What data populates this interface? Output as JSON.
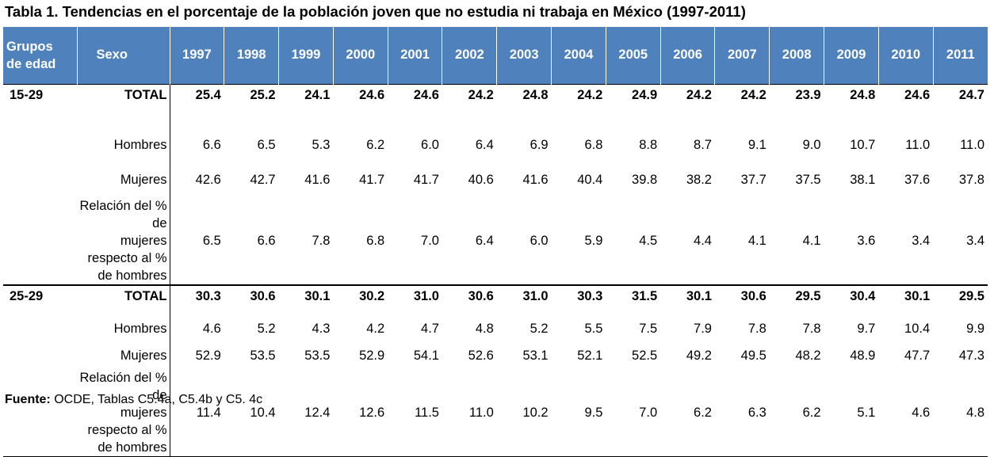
{
  "title": "Tabla 1. Tendencias en el porcentaje de la población joven que no estudia ni trabaja en México (1997-2011)",
  "header": {
    "group_label": "Grupos de edad",
    "group_line1": "Grupos",
    "group_line2": "de edad",
    "sex_label": "Sexo",
    "years": [
      "1997",
      "1998",
      "1999",
      "2000",
      "2001",
      "2002",
      "2003",
      "2004",
      "2005",
      "2006",
      "2007",
      "2008",
      "2009",
      "2010",
      "2011"
    ]
  },
  "groups": [
    {
      "name": "15-29",
      "rows": [
        {
          "label": "TOTAL",
          "values": [
            "25.4",
            "25.2",
            "24.1",
            "24.6",
            "24.6",
            "24.2",
            "24.8",
            "24.2",
            "24.9",
            "24.2",
            "24.2",
            "23.9",
            "24.8",
            "24.6",
            "24.7"
          ]
        },
        {
          "label": "Hombres",
          "values": [
            "6.6",
            "6.5",
            "5.3",
            "6.2",
            "6.0",
            "6.4",
            "6.9",
            "6.8",
            "8.8",
            "8.7",
            "9.1",
            "9.0",
            "10.7",
            "11.0",
            "11.0"
          ]
        },
        {
          "label": "Mujeres",
          "values": [
            "42.6",
            "42.7",
            "41.6",
            "41.7",
            "41.7",
            "40.6",
            "41.6",
            "40.4",
            "39.8",
            "38.2",
            "37.7",
            "37.5",
            "38.1",
            "37.6",
            "37.8"
          ]
        },
        {
          "label": "Relación del % de mujeres respecto al % de hombres",
          "values": [
            "6.5",
            "6.6",
            "7.8",
            "6.8",
            "7.0",
            "6.4",
            "6.0",
            "5.9",
            "4.5",
            "4.4",
            "4.1",
            "4.1",
            "3.6",
            "3.4",
            "3.4"
          ]
        }
      ]
    },
    {
      "name": "25-29",
      "rows": [
        {
          "label": "TOTAL",
          "values": [
            "30.3",
            "30.6",
            "30.1",
            "30.2",
            "31.0",
            "30.6",
            "31.0",
            "30.3",
            "31.5",
            "30.1",
            "30.6",
            "29.5",
            "30.4",
            "30.1",
            "29.5"
          ]
        },
        {
          "label": "Hombres",
          "values": [
            "4.6",
            "5.2",
            "4.3",
            "4.2",
            "4.7",
            "4.8",
            "5.2",
            "5.5",
            "7.5",
            "7.9",
            "7.8",
            "7.8",
            "9.7",
            "10.4",
            "9.9"
          ]
        },
        {
          "label": "Mujeres",
          "values": [
            "52.9",
            "53.5",
            "53.5",
            "52.9",
            "54.1",
            "52.6",
            "53.1",
            "52.1",
            "52.5",
            "49.2",
            "49.5",
            "48.2",
            "48.9",
            "47.7",
            "47.3"
          ]
        },
        {
          "label": "Relación del % de mujeres respecto al % de hombres",
          "values": [
            "11.4",
            "10.4",
            "12.4",
            "12.6",
            "11.5",
            "11.0",
            "10.2",
            "9.5",
            "7.0",
            "6.2",
            "6.3",
            "6.2",
            "5.1",
            "4.6",
            "4.8"
          ]
        }
      ]
    }
  ],
  "rel_lines": [
    "Relación del % de",
    "mujeres respecto al %",
    "de hombres"
  ],
  "source": {
    "label": "Fuente:",
    "text": " OCDE, Tablas C5.4a, C5.4b y C5. 4c"
  }
}
